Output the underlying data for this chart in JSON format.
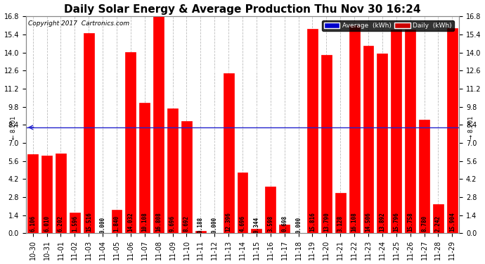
{
  "title": "Daily Solar Energy & Average Production Thu Nov 30 16:24",
  "copyright": "Copyright 2017  Cartronics.com",
  "categories": [
    "10-30",
    "10-31",
    "11-01",
    "11-02",
    "11-03",
    "11-04",
    "11-05",
    "11-06",
    "11-07",
    "11-08",
    "11-09",
    "11-10",
    "11-11",
    "11-12",
    "11-13",
    "11-14",
    "11-15",
    "11-16",
    "11-17",
    "11-18",
    "11-19",
    "11-20",
    "11-21",
    "11-22",
    "11-23",
    "11-24",
    "11-25",
    "11-26",
    "11-27",
    "11-28",
    "11-29"
  ],
  "values": [
    6.106,
    6.01,
    6.202,
    1.596,
    15.516,
    0.0,
    1.84,
    14.032,
    10.108,
    16.808,
    9.696,
    8.692,
    0.188,
    0.0,
    12.396,
    4.696,
    0.344,
    3.598,
    0.698,
    0.0,
    15.816,
    13.79,
    3.128,
    16.108,
    14.506,
    13.892,
    15.796,
    15.758,
    8.78,
    2.242,
    15.904
  ],
  "average": 8.201,
  "bar_color": "#ff0000",
  "avg_line_color": "#2222cc",
  "background_color": "#ffffff",
  "plot_bg_color": "#ffffff",
  "grid_color": "#bbbbbb",
  "ylim": [
    0,
    16.8
  ],
  "yticks": [
    0.0,
    1.4,
    2.8,
    4.2,
    5.6,
    7.0,
    8.4,
    9.8,
    11.2,
    12.6,
    14.0,
    15.4,
    16.8
  ],
  "legend_avg_color": "#0000cc",
  "legend_daily_color": "#cc0000",
  "legend_avg_text": "Average  (kWh)",
  "legend_daily_text": "Daily  (kWh)",
  "value_fontsize": 5.5,
  "title_fontsize": 11,
  "tick_fontsize": 7,
  "copyright_fontsize": 6.5
}
